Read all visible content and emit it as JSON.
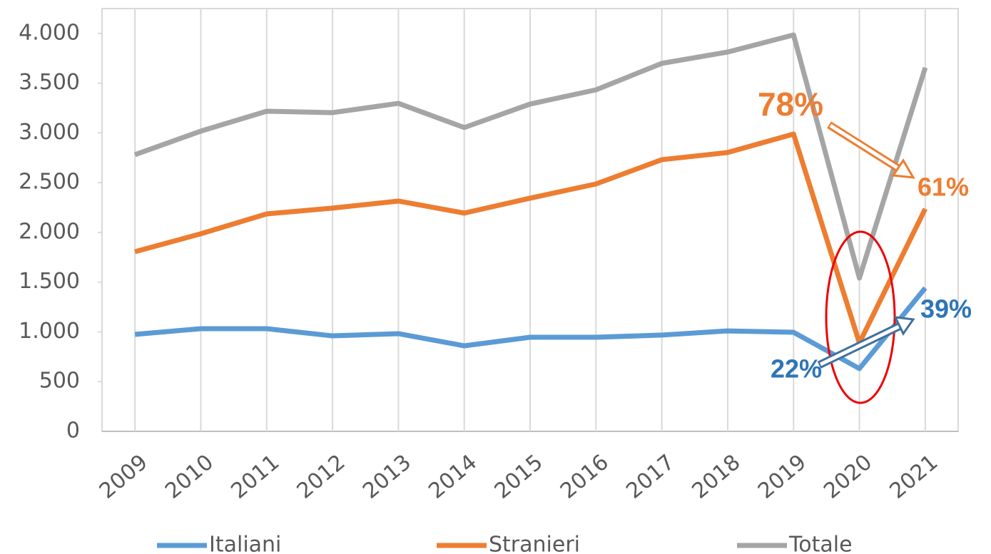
{
  "chart_data": {
    "type": "line",
    "categories": [
      "2009",
      "2010",
      "2011",
      "2012",
      "2013",
      "2014",
      "2015",
      "2016",
      "2017",
      "2018",
      "2019",
      "2020",
      "2021"
    ],
    "series": [
      {
        "name": "Italiani",
        "color": "#5b9bd5",
        "values": [
          975,
          1032,
          1032,
          960,
          982,
          860,
          946,
          946,
          968,
          1010,
          996,
          631,
          1441
        ]
      },
      {
        "name": "Stranieri",
        "color": "#ed7d31",
        "values": [
          1806,
          1986,
          2186,
          2244,
          2315,
          2194,
          2344,
          2487,
          2731,
          2803,
          2989,
          889,
          2237
        ]
      },
      {
        "name": "Totale",
        "color": "#a5a5a5",
        "values": [
          2781,
          3018,
          3218,
          3204,
          3297,
          3054,
          3290,
          3433,
          3699,
          3813,
          3985,
          1541,
          3656
        ]
      }
    ],
    "ylim": [
      0,
      4250
    ],
    "yticks": [
      0,
      500,
      {
        "value": 1000,
        "label": "1.000"
      },
      {
        "value": 1500,
        "label": "1.500"
      },
      {
        "value": 2000,
        "label": "2.000"
      },
      {
        "value": 2500,
        "label": "2.500"
      },
      {
        "value": 3000,
        "label": "3.000"
      },
      {
        "value": 3500,
        "label": "3.500"
      },
      {
        "value": 4000,
        "label": "4.000"
      }
    ],
    "grid": true,
    "legend": "bottom",
    "annotations": [
      {
        "text": "78%",
        "color": "#ed7d31"
      },
      {
        "text": "61%",
        "color": "#ed7d31"
      },
      {
        "text": "22%",
        "color": "#2e75b6"
      },
      {
        "text": "39%",
        "color": "#2e75b6"
      }
    ]
  }
}
